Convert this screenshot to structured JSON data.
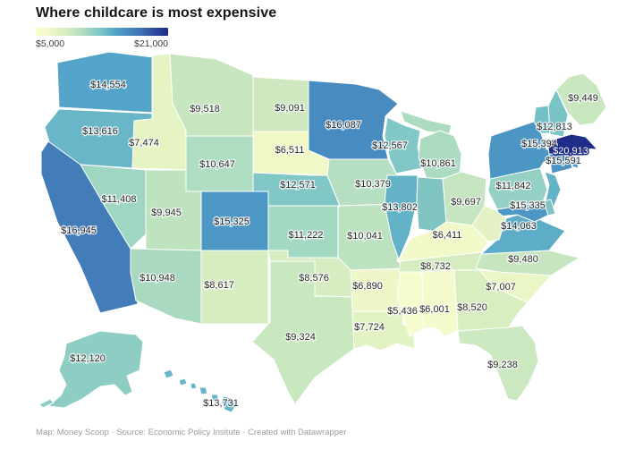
{
  "title": "Where childcare is most expensive",
  "legend": {
    "min_label": "$5,000",
    "max_label": "$21,000",
    "min": 5000,
    "max": 21000,
    "scale_stops": [
      {
        "t": 0,
        "c": "#fafdd0"
      },
      {
        "t": 0.1,
        "c": "#f0f8c8"
      },
      {
        "t": 0.2,
        "c": "#ddf0c1"
      },
      {
        "t": 0.3,
        "c": "#c2e4bf"
      },
      {
        "t": 0.4,
        "c": "#9fd6c2"
      },
      {
        "t": 0.5,
        "c": "#76c2c7"
      },
      {
        "t": 0.6,
        "c": "#52a3c8"
      },
      {
        "t": 0.7,
        "c": "#4689c0"
      },
      {
        "t": 0.8,
        "c": "#3e6fb4"
      },
      {
        "t": 0.9,
        "c": "#2c4aa0"
      },
      {
        "t": 1,
        "c": "#1e2b87"
      }
    ]
  },
  "footer": "Map: Money Scoop · Source: Economic Policy Insitute · Created with Datawrapper",
  "chart_data": {
    "type": "choropleth-map",
    "geography": "us-states",
    "title": "Where childcare is most expensive",
    "unit": "USD per year",
    "color_range": [
      5000,
      21000
    ],
    "states": [
      {
        "id": "WA",
        "value": 14554,
        "label": "$14,554"
      },
      {
        "id": "OR",
        "value": 13616,
        "label": "$13,616"
      },
      {
        "id": "CA",
        "value": 16945,
        "label": "$16,945"
      },
      {
        "id": "ID",
        "value": 7474,
        "label": "$7,474"
      },
      {
        "id": "NV",
        "value": 11408,
        "label": "$11,408"
      },
      {
        "id": "UT",
        "value": 9945,
        "label": "$9,945"
      },
      {
        "id": "AZ",
        "value": 10948,
        "label": "$10,948"
      },
      {
        "id": "MT",
        "value": 9518,
        "label": "$9,518"
      },
      {
        "id": "WY",
        "value": 10647,
        "label": "$10,647"
      },
      {
        "id": "CO",
        "value": 15325,
        "label": "$15,325"
      },
      {
        "id": "NM",
        "value": 8617,
        "label": "$8,617"
      },
      {
        "id": "ND",
        "value": 9091,
        "label": "$9,091"
      },
      {
        "id": "SD",
        "value": 6511,
        "label": "$6,511"
      },
      {
        "id": "NE",
        "value": 12571,
        "label": "$12,571"
      },
      {
        "id": "KS",
        "value": 11222,
        "label": "$11,222"
      },
      {
        "id": "OK",
        "value": 8576,
        "label": "$8,576"
      },
      {
        "id": "TX",
        "value": 9324,
        "label": "$9,324"
      },
      {
        "id": "MN",
        "value": 16087,
        "label": "$16,087"
      },
      {
        "id": "IA",
        "value": 10379,
        "label": "$10,379"
      },
      {
        "id": "MO",
        "value": 10041,
        "label": "$10,041"
      },
      {
        "id": "AR",
        "value": 6890,
        "label": "$6,890"
      },
      {
        "id": "LA",
        "value": 7724,
        "label": "$7,724"
      },
      {
        "id": "WI",
        "value": 12567,
        "label": "$12,567"
      },
      {
        "id": "IL",
        "value": 13802,
        "label": "$13,802"
      },
      {
        "id": "MS",
        "value": 5436,
        "label": "$5,436"
      },
      {
        "id": "MI",
        "value": 10861,
        "label": "$10,861"
      },
      {
        "id": "OH",
        "value": 9697,
        "label": "$9,697"
      },
      {
        "id": "KY",
        "value": 6411,
        "label": "$6,411"
      },
      {
        "id": "TN",
        "value": 8732,
        "label": "$8,732"
      },
      {
        "id": "AL",
        "value": 6001,
        "label": "$6,001"
      },
      {
        "id": "GA",
        "value": 8520,
        "label": "$8,520"
      },
      {
        "id": "FL",
        "value": 9238,
        "label": "$9,238"
      },
      {
        "id": "SC",
        "value": 7007,
        "label": "$7,007"
      },
      {
        "id": "NC",
        "value": 9480,
        "label": "$9,480"
      },
      {
        "id": "VA",
        "value": 14063,
        "label": "$14,063"
      },
      {
        "id": "MD",
        "value": 15335,
        "label": "$15,335"
      },
      {
        "id": "PA",
        "value": 11842,
        "label": "$11,842"
      },
      {
        "id": "NY",
        "value": 15394,
        "label": "$15,394"
      },
      {
        "id": "NH",
        "value": 12813,
        "label": "$12,813"
      },
      {
        "id": "ME",
        "value": 9449,
        "label": "$9,449"
      },
      {
        "id": "MA",
        "value": 20913,
        "label": "$20,913"
      },
      {
        "id": "CT",
        "value": 15591,
        "label": "$15,591"
      },
      {
        "id": "AK",
        "value": 12120,
        "label": "$12,120"
      },
      {
        "id": "HI",
        "value": 13731,
        "label": "$13,731"
      },
      {
        "id": "VT",
        "color": "#72bfc7"
      },
      {
        "id": "NJ",
        "color": "#64b2c6"
      },
      {
        "id": "DE",
        "color": "#7fc3c6"
      },
      {
        "id": "RI",
        "color": "#4a8fc4"
      },
      {
        "id": "IN",
        "color": "#7fc4c0"
      },
      {
        "id": "WV",
        "color": "#e4f1c4"
      }
    ]
  }
}
